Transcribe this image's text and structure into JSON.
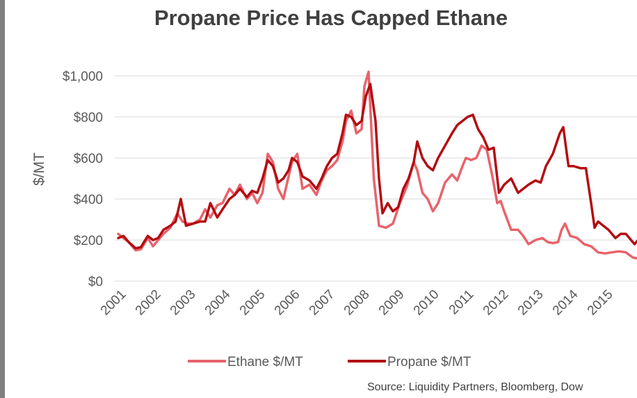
{
  "chart_data": {
    "type": "line",
    "title": "Propane Price Has Capped Ethane",
    "ylabel": "$/MT",
    "xlabel": "",
    "ylim": [
      0,
      1000
    ],
    "yticks": [
      "$0",
      "$200",
      "$400",
      "$600",
      "$800",
      "$1,000"
    ],
    "ytick_values": [
      0,
      200,
      400,
      600,
      800,
      1000
    ],
    "xlim": [
      2001,
      2016
    ],
    "xticks": [
      "2001",
      "2002",
      "2003",
      "2004",
      "2005",
      "2006",
      "2007",
      "2008",
      "2009",
      "2010",
      "2011",
      "2012",
      "2013",
      "2014",
      "2015"
    ],
    "grid": "horizontal",
    "legend_position": "bottom",
    "source": "Source: Liquidity Partners, Bloomberg, Dow",
    "series": [
      {
        "name": "Ethane $/MT",
        "color": "#e8636b",
        "x": [
          2001.0,
          2001.15,
          2001.3,
          2001.5,
          2001.65,
          2001.85,
          2002.0,
          2002.15,
          2002.3,
          2002.5,
          2002.7,
          2002.85,
          2003.0,
          2003.15,
          2003.35,
          2003.5,
          2003.65,
          2003.85,
          2004.0,
          2004.2,
          2004.35,
          2004.5,
          2004.7,
          2004.85,
          2005.0,
          2005.15,
          2005.3,
          2005.45,
          2005.6,
          2005.75,
          2005.9,
          2006.0,
          2006.15,
          2006.3,
          2006.5,
          2006.7,
          2006.85,
          2007.0,
          2007.15,
          2007.3,
          2007.45,
          2007.55,
          2007.7,
          2007.85,
          2008.0,
          2008.08,
          2008.2,
          2008.35,
          2008.5,
          2008.7,
          2008.9,
          2009.1,
          2009.3,
          2009.5,
          2009.6,
          2009.75,
          2009.9,
          2010.05,
          2010.2,
          2010.4,
          2010.6,
          2010.75,
          2010.9,
          2011.0,
          2011.15,
          2011.3,
          2011.45,
          2011.6,
          2011.75,
          2011.9,
          2012.0,
          2012.1,
          2012.3,
          2012.5,
          2012.65,
          2012.8,
          2013.0,
          2013.2,
          2013.35,
          2013.5,
          2013.65,
          2013.75,
          2013.85,
          2014.0,
          2014.2,
          2014.4,
          2014.6,
          2014.8,
          2015.0,
          2015.2,
          2015.4,
          2015.6,
          2015.8,
          2015.95
        ],
        "values": [
          230,
          210,
          190,
          150,
          155,
          210,
          170,
          200,
          230,
          260,
          330,
          290,
          280,
          280,
          300,
          350,
          310,
          370,
          380,
          450,
          420,
          470,
          400,
          430,
          380,
          430,
          620,
          580,
          450,
          400,
          510,
          580,
          620,
          450,
          470,
          420,
          490,
          540,
          560,
          590,
          680,
          780,
          830,
          720,
          740,
          950,
          1020,
          500,
          270,
          260,
          280,
          380,
          460,
          580,
          540,
          430,
          400,
          340,
          380,
          480,
          520,
          490,
          560,
          600,
          590,
          600,
          660,
          640,
          520,
          380,
          390,
          340,
          250,
          250,
          220,
          180,
          200,
          210,
          190,
          185,
          190,
          250,
          280,
          220,
          210,
          180,
          170,
          140,
          135,
          140,
          145,
          140,
          115,
          110
        ]
      },
      {
        "name": "Propane $/MT",
        "color": "#b30d12",
        "x": [
          2001.0,
          2001.15,
          2001.3,
          2001.5,
          2001.65,
          2001.85,
          2002.0,
          2002.15,
          2002.3,
          2002.5,
          2002.65,
          2002.8,
          2002.95,
          2003.15,
          2003.35,
          2003.5,
          2003.65,
          2003.85,
          2004.0,
          2004.2,
          2004.35,
          2004.5,
          2004.7,
          2004.85,
          2005.0,
          2005.15,
          2005.3,
          2005.45,
          2005.6,
          2005.75,
          2005.9,
          2006.0,
          2006.15,
          2006.3,
          2006.5,
          2006.7,
          2006.85,
          2007.0,
          2007.15,
          2007.3,
          2007.45,
          2007.55,
          2007.7,
          2007.85,
          2008.0,
          2008.12,
          2008.25,
          2008.4,
          2008.5,
          2008.6,
          2008.75,
          2008.9,
          2009.05,
          2009.2,
          2009.35,
          2009.5,
          2009.6,
          2009.75,
          2009.9,
          2010.05,
          2010.2,
          2010.4,
          2010.6,
          2010.75,
          2010.9,
          2011.05,
          2011.2,
          2011.35,
          2011.5,
          2011.65,
          2011.8,
          2011.95,
          2012.1,
          2012.3,
          2012.5,
          2012.65,
          2012.8,
          2013.0,
          2013.15,
          2013.3,
          2013.5,
          2013.7,
          2013.8,
          2013.95,
          2014.1,
          2014.3,
          2014.45,
          2014.6,
          2014.7,
          2014.8,
          2014.95,
          2015.1,
          2015.3,
          2015.45,
          2015.6,
          2015.75,
          2015.85,
          2015.95
        ],
        "values": [
          210,
          220,
          190,
          160,
          165,
          220,
          200,
          210,
          250,
          270,
          290,
          400,
          270,
          280,
          290,
          290,
          380,
          310,
          350,
          400,
          420,
          450,
          410,
          440,
          430,
          500,
          590,
          560,
          480,
          500,
          540,
          600,
          580,
          510,
          490,
          450,
          500,
          560,
          600,
          620,
          720,
          810,
          800,
          760,
          780,
          900,
          960,
          780,
          500,
          330,
          380,
          340,
          360,
          450,
          500,
          580,
          680,
          600,
          560,
          540,
          600,
          660,
          720,
          760,
          780,
          800,
          810,
          740,
          700,
          640,
          650,
          430,
          470,
          500,
          430,
          450,
          470,
          490,
          480,
          560,
          620,
          720,
          750,
          560,
          560,
          550,
          550,
          380,
          260,
          290,
          270,
          250,
          210,
          230,
          230,
          200,
          180,
          200
        ]
      }
    ]
  }
}
